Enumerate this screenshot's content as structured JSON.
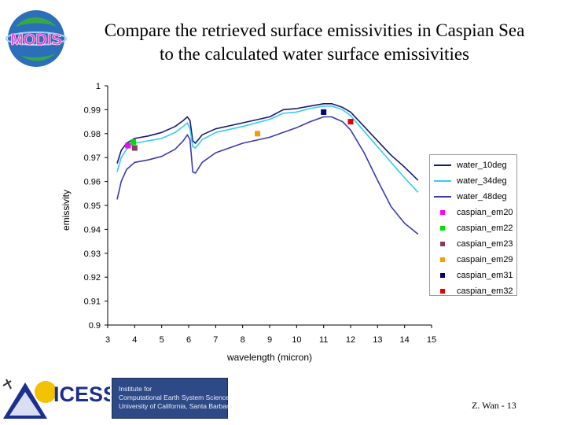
{
  "title": {
    "line1": "Compare the retrieved surface emissivities in Caspian Sea",
    "line2": "to the calculated water surface emissivities"
  },
  "logos": {
    "modis_text": "MODIS",
    "icess_text": "ICESS",
    "institute_lines": [
      "Institute for",
      "Computational Earth System Science",
      "University of California, Santa Barbara"
    ]
  },
  "footer": "Z. Wan - 13",
  "colors": {
    "water_10deg": "#191970",
    "water_34deg": "#33ccf0",
    "water_48deg": "#3a3ab0",
    "caspian_em20": "#ff00ff",
    "caspian_em22": "#00e000",
    "caspian_em23": "#8b3a62",
    "caspain_em29": "#ff9900",
    "caspian_em31": "#000080",
    "caspian_em32": "#e00000"
  },
  "chart_data": {
    "type": "line",
    "title": "",
    "xlabel": "wavelength (micron)",
    "ylabel": "emissivity",
    "xlim": [
      3,
      15
    ],
    "ylim": [
      0.9,
      1.0
    ],
    "xticks": [
      "3",
      "4",
      "5",
      "6",
      "7",
      "8",
      "9",
      "10",
      "11",
      "12",
      "13",
      "14",
      "15"
    ],
    "yticks": [
      "0.9",
      "0.91",
      "0.92",
      "0.93",
      "0.94",
      "0.95",
      "0.96",
      "0.97",
      "0.98",
      "0.99",
      "1"
    ],
    "legend_position": "right",
    "series": [
      {
        "name": "water_10deg",
        "kind": "line",
        "x": [
          3.35,
          3.5,
          3.7,
          4.0,
          4.5,
          5.0,
          5.5,
          5.8,
          5.95,
          6.05,
          6.15,
          6.25,
          6.5,
          7.0,
          8.0,
          9.0,
          9.5,
          10.0,
          10.5,
          11.0,
          11.3,
          11.7,
          12.0,
          12.5,
          13.0,
          13.5,
          14.0,
          14.5
        ],
        "y": [
          0.9675,
          0.973,
          0.976,
          0.978,
          0.979,
          0.9805,
          0.983,
          0.9855,
          0.987,
          0.9855,
          0.977,
          0.976,
          0.9795,
          0.982,
          0.9845,
          0.987,
          0.99,
          0.9905,
          0.9915,
          0.9925,
          0.9925,
          0.991,
          0.989,
          0.983,
          0.977,
          0.971,
          0.966,
          0.9605
        ]
      },
      {
        "name": "water_34deg",
        "kind": "line",
        "x": [
          3.35,
          3.5,
          3.7,
          4.0,
          4.5,
          5.0,
          5.5,
          5.8,
          5.95,
          6.05,
          6.15,
          6.25,
          6.5,
          7.0,
          8.0,
          9.0,
          9.5,
          10.0,
          10.5,
          11.0,
          11.3,
          11.7,
          12.0,
          12.5,
          13.0,
          13.5,
          14.0,
          14.5
        ],
        "y": [
          0.964,
          0.97,
          0.9735,
          0.976,
          0.977,
          0.978,
          0.9805,
          0.983,
          0.9845,
          0.982,
          0.9745,
          0.974,
          0.9775,
          0.9805,
          0.983,
          0.986,
          0.9885,
          0.989,
          0.9905,
          0.9915,
          0.9915,
          0.99,
          0.9875,
          0.981,
          0.9745,
          0.968,
          0.9615,
          0.9555
        ]
      },
      {
        "name": "water_48deg",
        "kind": "line",
        "x": [
          3.35,
          3.5,
          3.7,
          4.0,
          4.5,
          5.0,
          5.5,
          5.8,
          5.95,
          6.05,
          6.15,
          6.25,
          6.5,
          7.0,
          8.0,
          9.0,
          9.5,
          10.0,
          10.5,
          11.0,
          11.3,
          11.7,
          12.0,
          12.5,
          13.0,
          13.5,
          14.0,
          14.5
        ],
        "y": [
          0.9525,
          0.96,
          0.965,
          0.968,
          0.969,
          0.9705,
          0.9735,
          0.977,
          0.9795,
          0.9775,
          0.964,
          0.9635,
          0.968,
          0.972,
          0.976,
          0.9785,
          0.9805,
          0.9825,
          0.985,
          0.987,
          0.987,
          0.985,
          0.9815,
          0.972,
          0.9605,
          0.9495,
          0.9425,
          0.938
        ]
      },
      {
        "name": "caspian_em20",
        "kind": "marker",
        "x": [
          3.75
        ],
        "y": [
          0.975
        ]
      },
      {
        "name": "caspian_em22",
        "kind": "marker",
        "x": [
          3.95
        ],
        "y": [
          0.9765
        ]
      },
      {
        "name": "caspian_em23",
        "kind": "marker",
        "x": [
          4.0
        ],
        "y": [
          0.974
        ]
      },
      {
        "name": "caspain_em29",
        "kind": "marker",
        "x": [
          8.55
        ],
        "y": [
          0.98
        ]
      },
      {
        "name": "caspian_em31",
        "kind": "marker",
        "x": [
          11.0
        ],
        "y": [
          0.989
        ]
      },
      {
        "name": "caspian_em32",
        "kind": "marker",
        "x": [
          12.0
        ],
        "y": [
          0.985
        ]
      }
    ]
  }
}
